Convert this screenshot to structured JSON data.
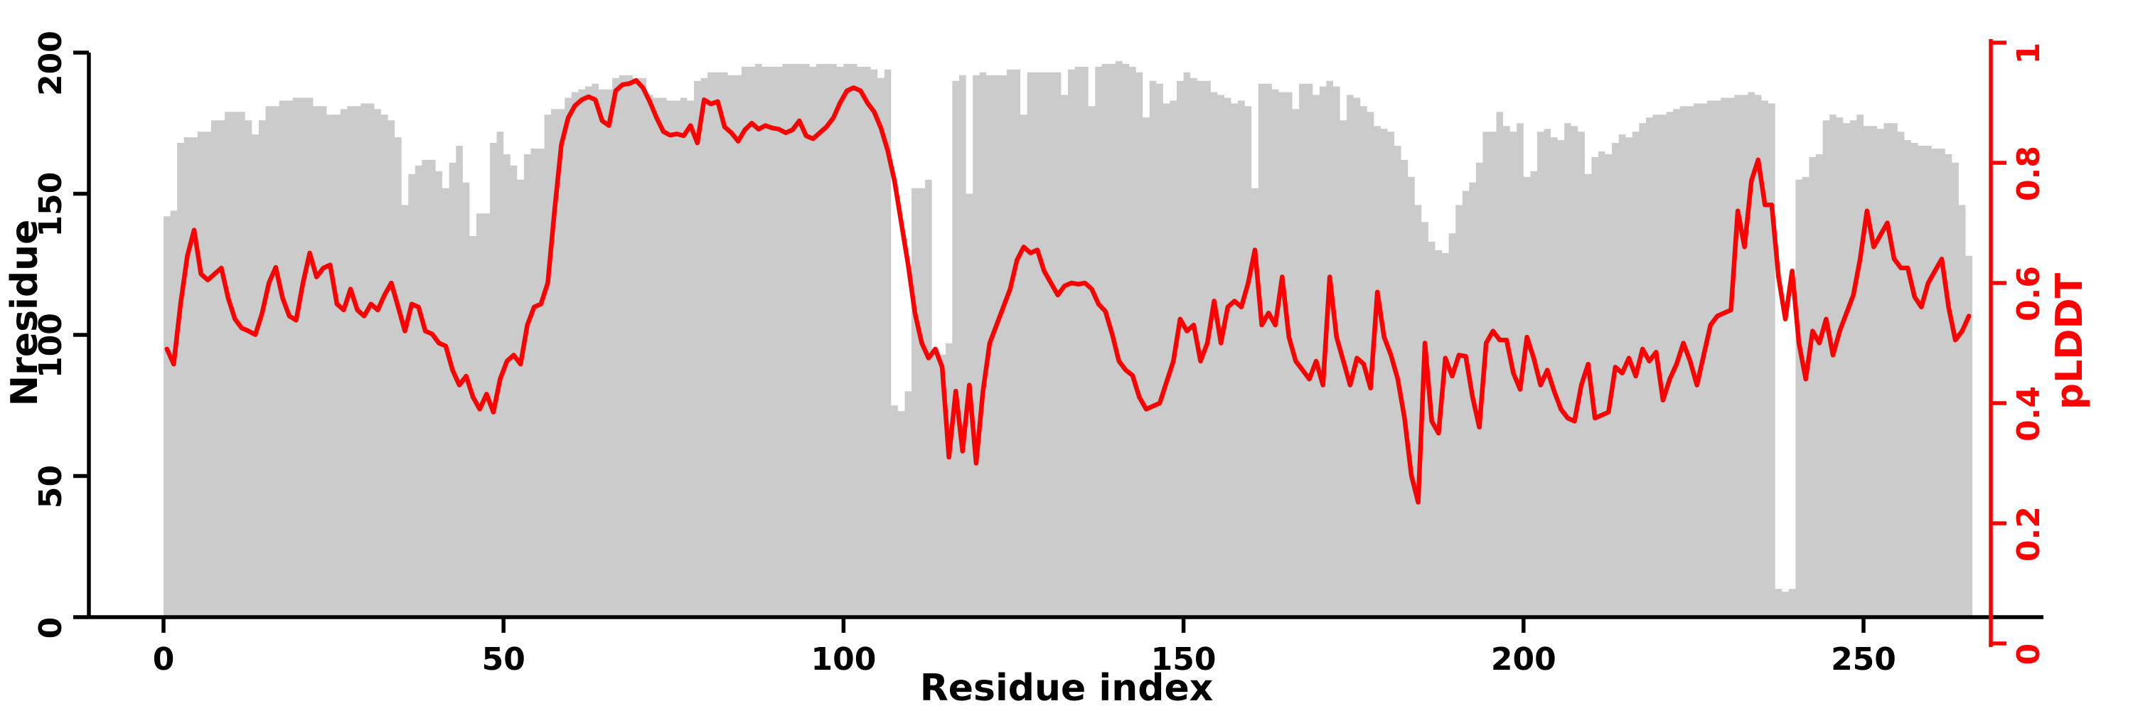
{
  "chart_data": {
    "type": "bar+line",
    "title": "",
    "xlabel": "Residue index",
    "ylabel_left": "Nresidue",
    "ylabel_right": "pLDDT",
    "x_ticks": [
      0,
      50,
      100,
      150,
      200,
      250
    ],
    "ylim_left": [
      0,
      200
    ],
    "y_ticks_left": [
      0,
      50,
      100,
      150,
      200
    ],
    "ylim_right": [
      0,
      1
    ],
    "y_ticks_right": [
      0,
      0.2,
      0.4,
      0.6,
      0.8,
      1
    ],
    "y_tick_labels_right": [
      "0",
      "0.2",
      "0.4",
      "0.6",
      "0.8",
      "1"
    ],
    "n_residues": 266,
    "legend": "none",
    "grid": false,
    "series": [
      {
        "name": "Nresidue",
        "type": "bar",
        "color": "#cbcbcb",
        "axis": "left",
        "values": [
          142,
          144,
          168,
          170,
          170,
          172,
          172,
          176,
          176,
          179,
          179,
          179,
          176,
          171,
          176,
          181,
          181,
          183,
          183,
          184,
          184,
          184,
          181,
          181,
          178,
          178,
          180,
          181,
          181,
          182,
          182,
          180,
          178,
          176,
          170,
          146,
          157,
          160,
          162,
          162,
          158,
          152,
          161,
          167,
          154,
          135,
          143,
          143,
          168,
          172,
          164,
          160,
          155,
          164,
          166,
          166,
          178,
          180,
          180,
          184,
          186,
          187,
          188,
          189,
          187,
          187,
          191,
          192,
          192,
          191,
          191,
          185,
          184,
          184,
          183,
          183,
          184,
          183,
          190,
          191,
          193,
          193,
          193,
          192,
          192,
          195,
          195,
          196,
          195,
          195,
          195,
          196,
          196,
          196,
          196,
          195,
          196,
          196,
          196,
          195,
          196,
          196,
          195,
          195,
          194,
          191,
          194,
          75,
          73,
          80,
          152,
          152,
          155,
          95,
          93,
          97,
          190,
          192,
          150,
          192,
          193,
          192,
          192,
          192,
          194,
          194,
          178,
          193,
          193,
          193,
          193,
          193,
          185,
          194,
          195,
          195,
          181,
          195,
          196,
          196,
          197,
          196,
          195,
          193,
          177,
          190,
          189,
          182,
          183,
          190,
          193,
          191,
          190,
          190,
          186,
          185,
          184,
          182,
          183,
          181,
          152,
          189,
          189,
          187,
          186,
          186,
          180,
          189,
          189,
          185,
          188,
          190,
          188,
          176,
          185,
          184,
          181,
          179,
          174,
          173,
          172,
          167,
          162,
          156,
          146,
          140,
          133,
          130,
          129,
          136,
          146,
          151,
          154,
          161,
          172,
          172,
          179,
          174,
          172,
          175,
          156,
          158,
          172,
          173,
          170,
          169,
          175,
          174,
          172,
          157,
          163,
          165,
          164,
          168,
          171,
          170,
          172,
          175,
          177,
          178,
          178,
          179,
          180,
          181,
          181,
          182,
          182,
          183,
          183,
          184,
          184,
          185,
          185,
          186,
          185,
          183,
          182,
          10,
          9,
          10,
          155,
          156,
          163,
          164,
          176,
          178,
          177,
          175,
          176,
          178,
          174,
          174,
          173,
          175,
          175,
          172,
          169,
          168,
          167,
          167,
          166,
          166,
          164,
          161,
          146,
          128
        ]
      },
      {
        "name": "pLDDT",
        "type": "line",
        "color": "#ff0000",
        "axis": "right",
        "values": [
          0.49,
          0.465,
          0.565,
          0.645,
          0.688,
          0.615,
          0.605,
          0.615,
          0.625,
          0.575,
          0.54,
          0.525,
          0.52,
          0.514,
          0.55,
          0.6,
          0.626,
          0.575,
          0.545,
          0.538,
          0.6,
          0.65,
          0.61,
          0.625,
          0.63,
          0.565,
          0.555,
          0.59,
          0.555,
          0.545,
          0.565,
          0.555,
          0.58,
          0.6,
          0.56,
          0.52,
          0.565,
          0.56,
          0.52,
          0.515,
          0.5,
          0.495,
          0.455,
          0.43,
          0.445,
          0.41,
          0.39,
          0.415,
          0.385,
          0.44,
          0.47,
          0.48,
          0.465,
          0.53,
          0.56,
          0.565,
          0.6,
          0.72,
          0.83,
          0.875,
          0.895,
          0.905,
          0.91,
          0.905,
          0.87,
          0.862,
          0.92,
          0.93,
          0.932,
          0.937,
          0.925,
          0.902,
          0.875,
          0.852,
          0.846,
          0.848,
          0.845,
          0.862,
          0.833,
          0.905,
          0.898,
          0.902,
          0.86,
          0.85,
          0.836,
          0.855,
          0.866,
          0.856,
          0.862,
          0.858,
          0.856,
          0.85,
          0.855,
          0.87,
          0.845,
          0.84,
          0.85,
          0.86,
          0.875,
          0.9,
          0.92,
          0.925,
          0.92,
          0.9,
          0.885,
          0.858,
          0.82,
          0.77,
          0.7,
          0.63,
          0.55,
          0.5,
          0.475,
          0.49,
          0.46,
          0.31,
          0.42,
          0.32,
          0.43,
          0.3,
          0.42,
          0.5,
          0.53,
          0.56,
          0.59,
          0.638,
          0.66,
          0.65,
          0.655,
          0.62,
          0.6,
          0.58,
          0.595,
          0.6,
          0.598,
          0.6,
          0.59,
          0.565,
          0.553,
          0.515,
          0.47,
          0.455,
          0.446,
          0.41,
          0.39,
          0.395,
          0.4,
          0.435,
          0.47,
          0.54,
          0.52,
          0.53,
          0.47,
          0.5,
          0.57,
          0.5,
          0.56,
          0.57,
          0.56,
          0.6,
          0.655,
          0.53,
          0.55,
          0.53,
          0.61,
          0.51,
          0.47,
          0.455,
          0.44,
          0.47,
          0.43,
          0.61,
          0.51,
          0.47,
          0.43,
          0.475,
          0.465,
          0.425,
          0.585,
          0.51,
          0.48,
          0.44,
          0.375,
          0.28,
          0.235,
          0.5,
          0.37,
          0.35,
          0.475,
          0.445,
          0.48,
          0.478,
          0.41,
          0.36,
          0.5,
          0.52,
          0.505,
          0.505,
          0.45,
          0.423,
          0.51,
          0.475,
          0.43,
          0.455,
          0.42,
          0.39,
          0.375,
          0.37,
          0.43,
          0.465,
          0.375,
          0.38,
          0.385,
          0.46,
          0.45,
          0.475,
          0.445,
          0.49,
          0.47,
          0.485,
          0.405,
          0.44,
          0.465,
          0.5,
          0.47,
          0.43,
          0.48,
          0.53,
          0.545,
          0.55,
          0.555,
          0.72,
          0.66,
          0.77,
          0.805,
          0.73,
          0.73,
          0.61,
          0.54,
          0.62,
          0.5,
          0.44,
          0.52,
          0.5,
          0.54,
          0.48,
          0.52,
          0.55,
          0.58,
          0.64,
          0.72,
          0.66,
          0.68,
          0.7,
          0.64,
          0.625,
          0.625,
          0.577,
          0.56,
          0.6,
          0.62,
          0.64,
          0.56,
          0.505,
          0.52,
          0.545
        ]
      }
    ]
  },
  "colors": {
    "background": "#ffffff",
    "bar_fill": "#cbcbcb",
    "line_red": "#ff0000",
    "axis_black": "#000000"
  }
}
